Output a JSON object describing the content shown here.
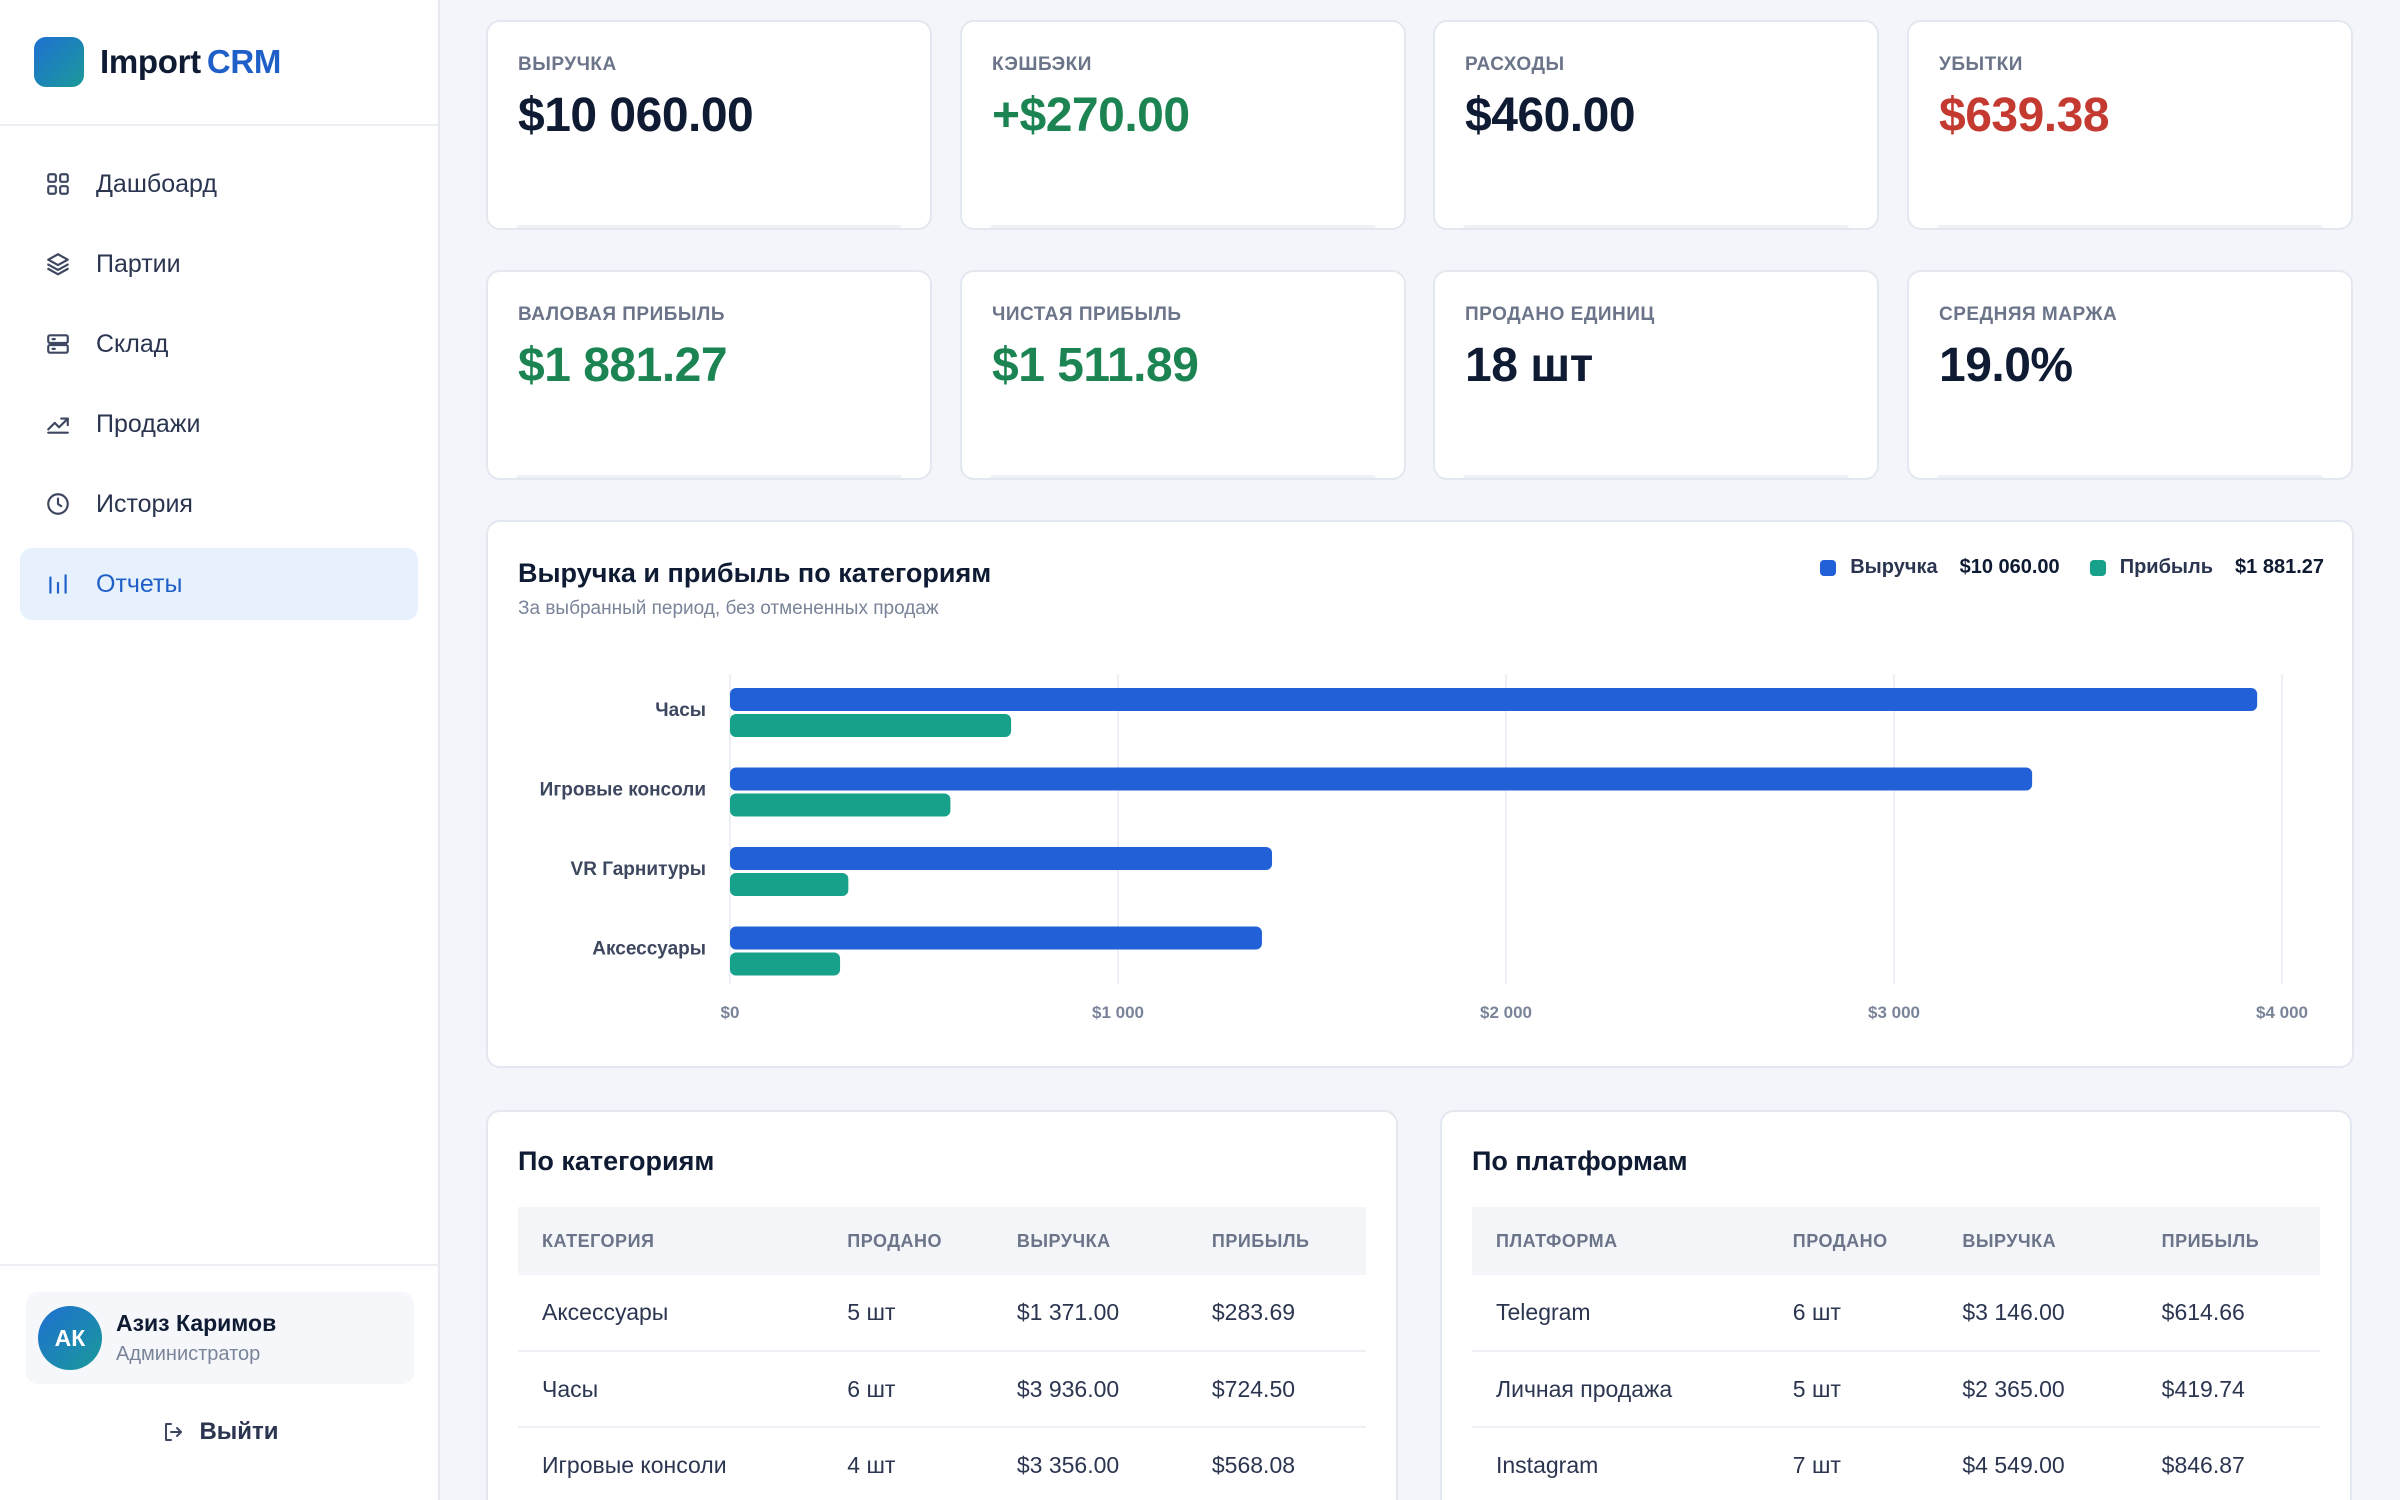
{
  "brand": {
    "name_part1": "Import",
    "name_part2": "CRM"
  },
  "nav": [
    {
      "label": "Дашбоард",
      "icon": "grid-icon",
      "active": false
    },
    {
      "label": "Партии",
      "icon": "layers-icon",
      "active": false
    },
    {
      "label": "Склад",
      "icon": "server-icon",
      "active": false
    },
    {
      "label": "Продажи",
      "icon": "trending-up-icon",
      "active": false
    },
    {
      "label": "История",
      "icon": "clock-icon",
      "active": false
    },
    {
      "label": "Отчеты",
      "icon": "bar-chart-icon",
      "active": true
    }
  ],
  "user": {
    "initials": "АК",
    "name": "Азиз Каримов",
    "role": "Администратор"
  },
  "logout_label": "Выйти",
  "kpis": [
    {
      "label": "ВЫРУЧКА",
      "value": "$10 060.00",
      "tone": "default"
    },
    {
      "label": "КЭШБЭКИ",
      "value": "+$270.00",
      "tone": "green"
    },
    {
      "label": "РАСХОДЫ",
      "value": "$460.00",
      "tone": "default"
    },
    {
      "label": "УБЫТКИ",
      "value": "$639.38",
      "tone": "red"
    },
    {
      "label": "ВАЛОВАЯ ПРИБЫЛЬ",
      "value": "$1 881.27",
      "tone": "green"
    },
    {
      "label": "ЧИСТАЯ ПРИБЫЛЬ",
      "value": "$1 511.89",
      "tone": "green"
    },
    {
      "label": "ПРОДАНО ЕДИНИЦ",
      "value": "18 шт",
      "tone": "default"
    },
    {
      "label": "СРЕДНЯЯ МАРЖА",
      "value": "19.0%",
      "tone": "default"
    }
  ],
  "chart": {
    "title": "Выручка и прибыль по категориям",
    "subtitle": "За выбранный период, без отмененных продаж",
    "legend": [
      {
        "name": "Выручка",
        "value": "$10 060.00",
        "color": "#2160d6"
      },
      {
        "name": "Прибыль",
        "value": "$1 881.27",
        "color": "#17a08a"
      }
    ]
  },
  "chart_data": {
    "type": "bar",
    "orientation": "horizontal",
    "categories": [
      "Часы",
      "Игровые консоли",
      "VR Гарнитуры",
      "Аксессуары"
    ],
    "series": [
      {
        "name": "Выручка",
        "values": [
          3936,
          3356,
          1397,
          1371
        ],
        "color": "#2160d6"
      },
      {
        "name": "Прибыль",
        "values": [
          724.5,
          568.08,
          305,
          283.69
        ],
        "color": "#17a08a"
      }
    ],
    "xlim": [
      0,
      4000
    ],
    "xticks": [
      0,
      1000,
      2000,
      3000,
      4000
    ],
    "xtick_labels": [
      "$0",
      "$1 000",
      "$2 000",
      "$3 000",
      "$4 000"
    ],
    "grid": "vertical",
    "legend_position": "top-right"
  },
  "tables": {
    "categories": {
      "title": "По категориям",
      "headers": [
        "КАТЕГОРИЯ",
        "ПРОДАНО",
        "ВЫРУЧКА",
        "ПРИБЫЛЬ"
      ],
      "rows": [
        [
          "Аксессуары",
          "5 шт",
          "$1 371.00",
          "$283.69"
        ],
        [
          "Часы",
          "6 шт",
          "$3 936.00",
          "$724.50"
        ],
        [
          "Игровые консоли",
          "4 шт",
          "$3 356.00",
          "$568.08"
        ]
      ]
    },
    "platforms": {
      "title": "По платформам",
      "headers": [
        "ПЛАТФОРМА",
        "ПРОДАНО",
        "ВЫРУЧКА",
        "ПРИБЫЛЬ"
      ],
      "rows": [
        [
          "Telegram",
          "6 шт",
          "$3 146.00",
          "$614.66"
        ],
        [
          "Личная продажа",
          "5 шт",
          "$2 365.00",
          "$419.74"
        ],
        [
          "Instagram",
          "7 шт",
          "$4 549.00",
          "$846.87"
        ]
      ]
    }
  }
}
